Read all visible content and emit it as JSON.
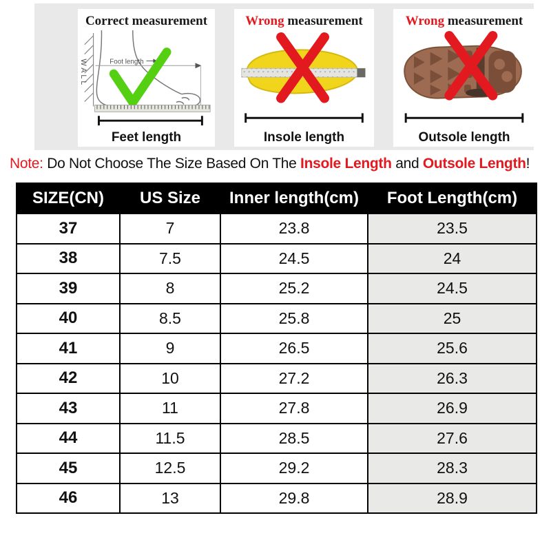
{
  "panels": [
    {
      "title_prefix": "Correct",
      "title_rest": " measurement",
      "wall_label": "WALL",
      "inner_label": "Foot length",
      "label": "Feet length"
    },
    {
      "title_prefix": "Wrong",
      "title_rest": " measurement",
      "label": "Insole length"
    },
    {
      "title_prefix": "Wrong",
      "title_rest": " measurement",
      "label": "Outsole length"
    }
  ],
  "note": {
    "prefix": "Note:",
    "body": " Do Not Choose The Size Based On The ",
    "highlight1": "Insole Length",
    "middle": " and ",
    "highlight2": "Outsole Length",
    "suffix": "!"
  },
  "table": {
    "headers": [
      "SIZE(CN)",
      "US Size",
      "Inner length(cm)",
      "Foot Length(cm)"
    ],
    "rows": [
      [
        "37",
        "7",
        "23.8",
        "23.5"
      ],
      [
        "38",
        "7.5",
        "24.5",
        "24"
      ],
      [
        "39",
        "8",
        "25.2",
        "24.5"
      ],
      [
        "40",
        "8.5",
        "25.8",
        "25"
      ],
      [
        "41",
        "9",
        "26.5",
        "25.6"
      ],
      [
        "42",
        "10",
        "27.2",
        "26.3"
      ],
      [
        "43",
        "11",
        "27.8",
        "26.9"
      ],
      [
        "44",
        "11.5",
        "28.5",
        "27.6"
      ],
      [
        "45",
        "12.5",
        "29.2",
        "28.3"
      ],
      [
        "46",
        "13",
        "29.8",
        "28.9"
      ]
    ]
  },
  "colors": {
    "accent_red": "#e2191f",
    "check_green": "#54cf12",
    "insole_yellow": "#f0d51c",
    "outsole_brown": "#9c6b51",
    "band_gray": "#e9e9e9",
    "header_bg": "#000000",
    "shaded_column": "#e9e9e7"
  }
}
